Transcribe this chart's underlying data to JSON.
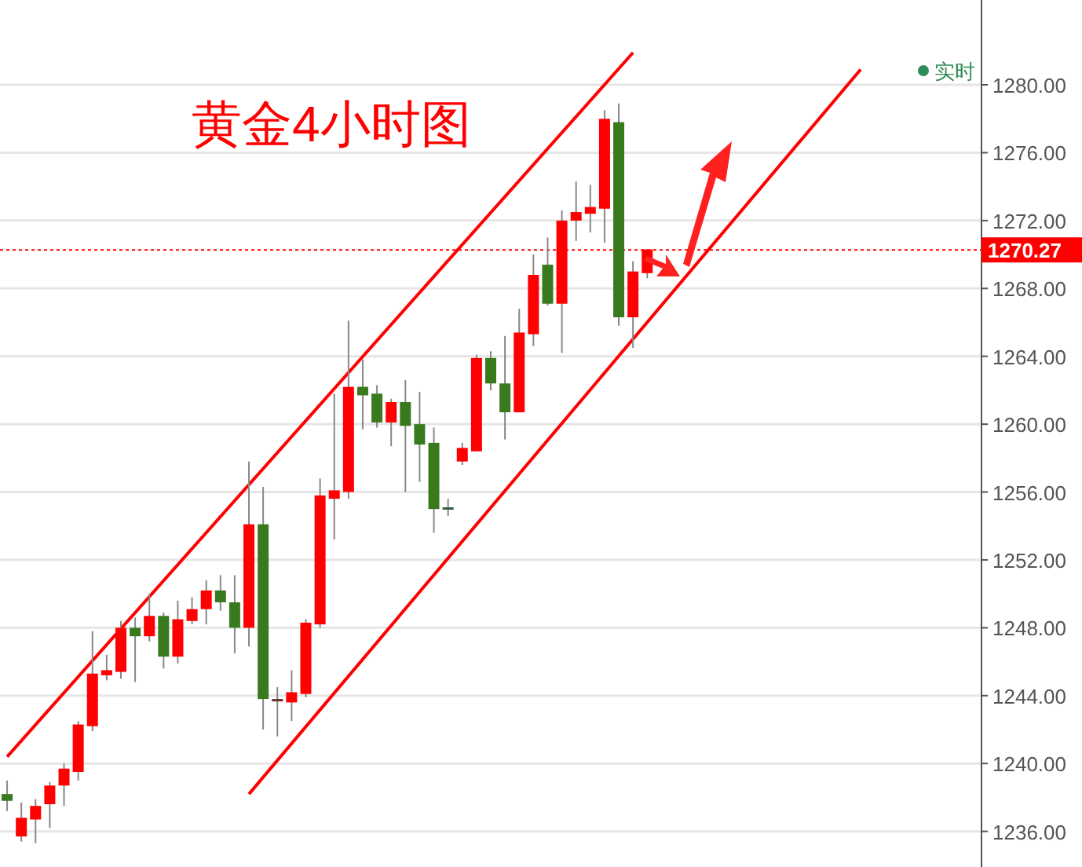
{
  "chart_data": {
    "type": "candlestick",
    "title": "黄金4小时图",
    "annotations": [
      "实时"
    ],
    "categories": [
      null,
      null,
      null,
      null,
      null,
      null,
      null,
      null,
      null,
      null,
      null,
      null,
      null,
      null,
      null,
      null,
      null,
      null,
      null,
      null,
      null,
      null,
      null,
      null,
      null,
      null,
      null,
      null,
      null,
      null,
      null,
      null,
      null,
      null,
      null,
      null,
      null,
      null,
      null,
      null,
      null,
      null,
      null,
      null,
      null,
      null,
      null,
      null,
      null,
      null,
      null,
      null,
      null,
      null,
      null,
      null,
      null,
      null,
      null,
      null,
      null,
      null,
      null,
      null,
      null,
      null,
      null,
      null,
      null
    ],
    "ylim": [
      1233.9,
      1285
    ],
    "yticks": [
      {
        "value": 1236,
        "label": "1236.00"
      },
      {
        "value": 1240,
        "label": "1240.00"
      },
      {
        "value": 1244,
        "label": "1244.00"
      },
      {
        "value": 1248,
        "label": "1248.00"
      },
      {
        "value": 1252,
        "label": "1252.00"
      },
      {
        "value": 1256,
        "label": "1256.00"
      },
      {
        "value": 1260,
        "label": "1260.00"
      },
      {
        "value": 1264,
        "label": "1264.00"
      },
      {
        "value": 1268,
        "label": "1268.00"
      },
      {
        "value": 1272,
        "label": "1272.00"
      },
      {
        "value": 1276,
        "label": "1276.00"
      },
      {
        "value": 1280,
        "label": "1280.00"
      }
    ],
    "grid": "y",
    "tick_labels": "y",
    "ref_lines": [
      {
        "axis": "y",
        "value": 1270.27,
        "label": "1270.27",
        "color": "#ff0000",
        "line_style": "dotted"
      }
    ],
    "series": [
      {
        "type": "line",
        "values": [
          1240.4,
          null,
          null,
          null,
          null,
          null,
          null,
          null,
          null,
          null,
          null,
          null,
          null,
          null,
          null,
          null,
          null,
          null,
          null,
          null,
          null,
          null,
          null,
          null,
          null,
          null,
          null,
          null,
          null,
          null,
          null,
          null,
          null,
          null,
          null,
          null,
          null,
          null,
          null,
          null,
          null,
          null,
          null,
          null,
          1281.9,
          null,
          null,
          null,
          null,
          null,
          null,
          null,
          null,
          null,
          null,
          null,
          null,
          null,
          null,
          null,
          null,
          null,
          null,
          null,
          null,
          null,
          null,
          null,
          null
        ],
        "color": "#ff0000"
      },
      {
        "type": "line",
        "values": [
          null,
          null,
          null,
          null,
          null,
          null,
          null,
          null,
          null,
          null,
          null,
          null,
          null,
          null,
          null,
          null,
          null,
          1238.2,
          null,
          null,
          null,
          null,
          null,
          null,
          null,
          null,
          null,
          null,
          null,
          null,
          null,
          null,
          null,
          null,
          null,
          null,
          null,
          null,
          null,
          null,
          null,
          null,
          null,
          null,
          null,
          null,
          null,
          null,
          null,
          null,
          null,
          null,
          null,
          null,
          null,
          null,
          null,
          null,
          null,
          null,
          1280.9,
          null,
          null,
          null,
          null,
          null,
          null,
          null,
          null
        ],
        "color": "#ff0000"
      },
      {
        "type": "candlestick",
        "ohlc": [
          [
            1238.2,
            1239.0,
            1237.2,
            1237.8
          ],
          [
            1235.7,
            1237.7,
            1235.4,
            1236.8
          ],
          [
            1236.7,
            1237.9,
            1235.3,
            1237.5
          ],
          [
            1237.6,
            1238.9,
            1236.2,
            1238.7
          ],
          [
            1238.7,
            1240.0,
            1237.5,
            1239.7
          ],
          [
            1239.5,
            1242.5,
            1239.0,
            1242.3
          ],
          [
            1242.2,
            1247.8,
            1241.9,
            1245.3
          ],
          [
            1245.2,
            1246.4,
            1244.9,
            1245.5
          ],
          [
            1245.4,
            1248.4,
            1245.0,
            1248.0
          ],
          [
            1248.0,
            1248.6,
            1244.8,
            1247.5
          ],
          [
            1247.5,
            1250.0,
            1247.2,
            1248.7
          ],
          [
            1248.7,
            1248.9,
            1245.6,
            1246.3
          ],
          [
            1246.3,
            1249.6,
            1245.9,
            1248.5
          ],
          [
            1248.4,
            1249.8,
            1248.2,
            1249.1
          ],
          [
            1249.1,
            1250.8,
            1248.2,
            1250.2
          ],
          [
            1250.2,
            1251.1,
            1249.0,
            1249.5
          ],
          [
            1249.5,
            1251.1,
            1246.5,
            1248.0
          ],
          [
            1248.0,
            1257.8,
            1246.9,
            1254.1
          ],
          [
            1254.1,
            1256.3,
            1242.0,
            1243.8
          ],
          [
            1243.8,
            1244.5,
            1241.6,
            1243.7
          ],
          [
            1243.6,
            1245.5,
            1242.5,
            1244.2
          ],
          [
            1244.1,
            1248.5,
            1243.9,
            1248.3
          ],
          [
            1248.2,
            1256.8,
            1248.0,
            1255.8
          ],
          [
            1255.6,
            1261.8,
            1253.2,
            1256.1
          ],
          [
            1256.0,
            1266.1,
            1255.6,
            1262.2
          ],
          [
            1262.2,
            1263.8,
            1259.7,
            1261.7
          ],
          [
            1261.8,
            1262.3,
            1259.8,
            1260.1
          ],
          [
            1260.1,
            1261.5,
            1258.7,
            1261.3
          ],
          [
            1261.3,
            1262.6,
            1256.0,
            1259.9
          ],
          [
            1260.0,
            1261.9,
            1256.6,
            1258.8
          ],
          [
            1258.9,
            1259.8,
            1253.6,
            1255.0
          ],
          [
            1255.1,
            1255.6,
            1254.6,
            1255.0
          ],
          [
            1257.8,
            1258.9,
            1257.6,
            1258.6
          ],
          [
            1258.4,
            1264.1,
            1258.4,
            1263.9
          ],
          [
            1263.9,
            1264.3,
            1262.0,
            1262.4
          ],
          [
            1262.4,
            1265.2,
            1259.1,
            1260.7
          ],
          [
            1260.7,
            1266.8,
            1260.7,
            1265.4
          ],
          [
            1265.3,
            1270.0,
            1264.6,
            1268.8
          ],
          [
            1269.4,
            1271.0,
            1267.0,
            1267.1
          ],
          [
            1267.1,
            1272.6,
            1264.2,
            1272.0
          ],
          [
            1272.0,
            1274.3,
            1270.8,
            1272.5
          ],
          [
            1272.4,
            1274.1,
            1271.3,
            1272.8
          ],
          [
            1272.7,
            1278.5,
            1270.7,
            1278.0
          ],
          [
            1277.8,
            1278.9,
            1265.8,
            1266.3
          ],
          [
            1266.3,
            1269.6,
            1264.5,
            1269.0
          ],
          [
            1268.9,
            1270.3,
            1268.6,
            1270.3
          ],
          null,
          null,
          null,
          null,
          null,
          null,
          null,
          null,
          null,
          null,
          null,
          null,
          null,
          null,
          null,
          null,
          null,
          null,
          null,
          null,
          null,
          null,
          null
        ],
        "colors": [
          "#3a7a1e",
          "#ff0000",
          "#ff0000",
          "#ff0000",
          "#ff0000",
          "#ff0000",
          "#ff0000",
          "#ff0000",
          "#ff0000",
          "#3a7a1e",
          "#ff0000",
          "#3a7a1e",
          "#ff0000",
          "#ff0000",
          "#ff0000",
          "#3a7a1e",
          "#3a7a1e",
          "#ff0000",
          "#3a7a1e",
          "#6b2a2a",
          "#ff0000",
          "#ff0000",
          "#ff0000",
          "#ff0000",
          "#ff0000",
          "#3a7a1e",
          "#3a7a1e",
          "#ff0000",
          "#3a7a1e",
          "#3a7a1e",
          "#3a7a1e",
          "#2e5e3e",
          "#ff0000",
          "#ff0000",
          "#3a7a1e",
          "#3a7a1e",
          "#ff0000",
          "#ff0000",
          "#3a7a1e",
          "#ff0000",
          "#ff0000",
          "#ff0000",
          "#ff0000",
          "#3a7a1e",
          "#ff0000",
          "#ff0000",
          null,
          null,
          null,
          null,
          null,
          null,
          null,
          null,
          null,
          null,
          null,
          null,
          null,
          null,
          null,
          null,
          null,
          null,
          null,
          null,
          null,
          null,
          null
        ]
      }
    ]
  }
}
